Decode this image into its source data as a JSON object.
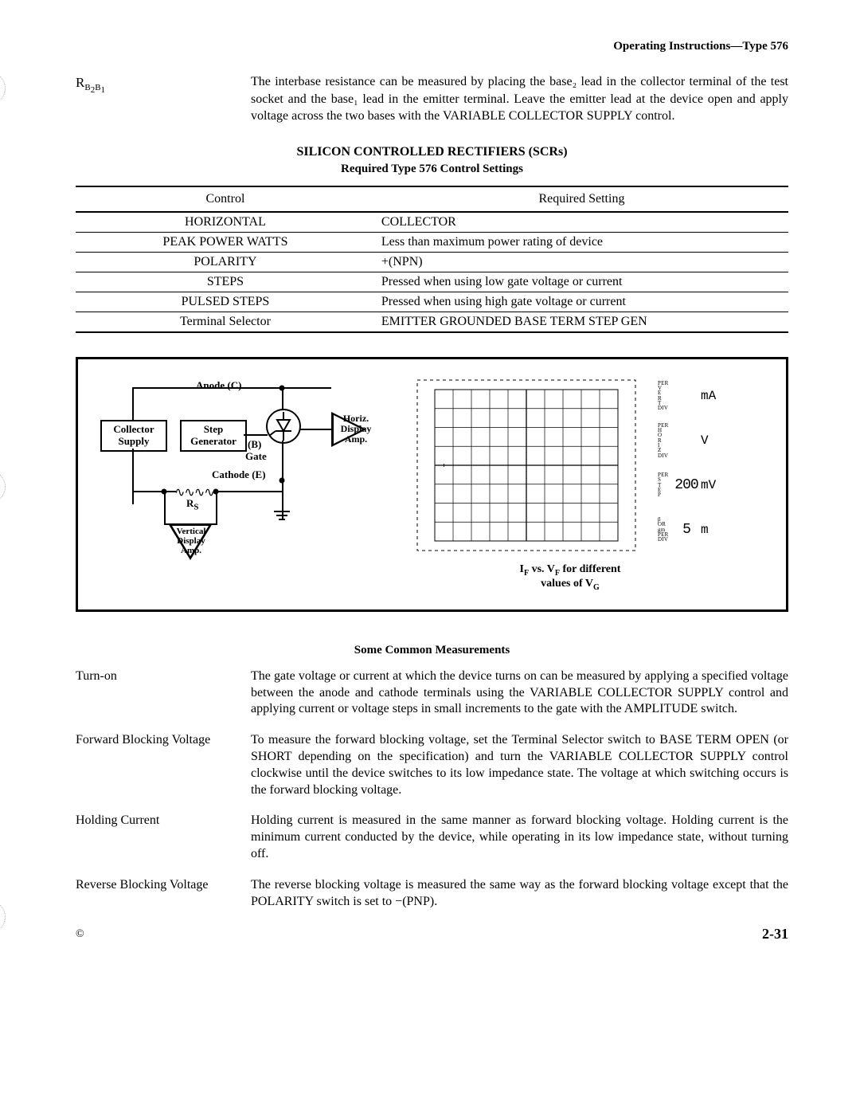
{
  "header_right": "Operating Instructions—Type 576",
  "intro": {
    "label_prefix": "R",
    "label_sub": "B₂B₁",
    "text": "The interbase resistance can be measured by placing the base₂ lead in the collector terminal of the test socket and the base₁ lead in the emitter terminal. Leave the emitter lead at the device open and apply voltage across the two bases with the VARIABLE COLLECTOR SUPPLY control."
  },
  "section_heading": "SILICON CONTROLLED RECTIFIERS (SCRs)",
  "section_sub": "Required Type 576 Control Settings",
  "table": {
    "headers": [
      "Control",
      "Required Setting"
    ],
    "rows": [
      [
        "HORIZONTAL",
        "COLLECTOR"
      ],
      [
        "PEAK POWER WATTS",
        "Less than maximum power rating of device"
      ],
      [
        "POLARITY",
        "+(NPN)"
      ],
      [
        "STEPS",
        "Pressed when using low gate voltage or current"
      ],
      [
        "PULSED STEPS",
        "Pressed when using high gate voltage or current"
      ],
      [
        "Terminal Selector",
        "EMITTER GROUNDED BASE TERM STEP GEN"
      ]
    ]
  },
  "circuit": {
    "anode_label": "Anode  (C)",
    "cathode_label": "Cathode  (E)",
    "gate_label": "Gate",
    "b_label": "(B)",
    "collector_supply": "Collector\nSupply",
    "step_generator": "Step\nGenerator",
    "horiz_amp": "Horiz.\nDisplay\nAmp.",
    "vert_amp": "Vertical\nDisplay\nAmp.",
    "rs_label": "Rₛ"
  },
  "crt_caption_line1": "I_F vs. V_F for different",
  "crt_caption_line2": "values of V_G",
  "scales": [
    {
      "label": "PER\nV\nE\nR\nT\nDIV",
      "value": "",
      "unit": "mA"
    },
    {
      "label": "PER\nH\nO\nR\nI\nZ\nDIV",
      "value": "",
      "unit": "V"
    },
    {
      "label": "PER\nS\nT\nE\nP",
      "value": "200",
      "unit": "mV"
    },
    {
      "label": "β\nOR\ngm\nPER\nDIV",
      "value": "5",
      "unit": "m"
    }
  ],
  "measurements_heading": "Some Common Measurements",
  "measurements": [
    {
      "label": "Turn-on",
      "text": "The gate voltage or current at which the device turns on can be measured by applying a specified voltage between the anode and cathode terminals using the VARIABLE COLLECTOR SUPPLY control and applying current or voltage steps in small increments to the gate with the AMPLITUDE switch."
    },
    {
      "label": "Forward Blocking Voltage",
      "text": "To measure the forward blocking voltage, set the Terminal Selector switch to BASE TERM OPEN (or SHORT depending on the specification) and turn the VARIABLE COLLECTOR SUPPLY control clockwise until the device switches to its low impedance state. The voltage at which switching occurs is the forward blocking voltage."
    },
    {
      "label": "Holding Current",
      "text": "Holding current is measured in the same manner as forward blocking voltage. Holding current is the minimum current conducted by the device, while operating in its low impedance state, without turning off."
    },
    {
      "label": "Reverse Blocking Voltage",
      "text": "The reverse blocking voltage is measured the same way as the forward blocking voltage except that the POLARITY switch is set to −(PNP)."
    }
  ],
  "page_number": "2-31",
  "copyright": "©",
  "colors": {
    "page_bg": "#ffffff",
    "ink": "#000000",
    "grid": "#000000"
  }
}
